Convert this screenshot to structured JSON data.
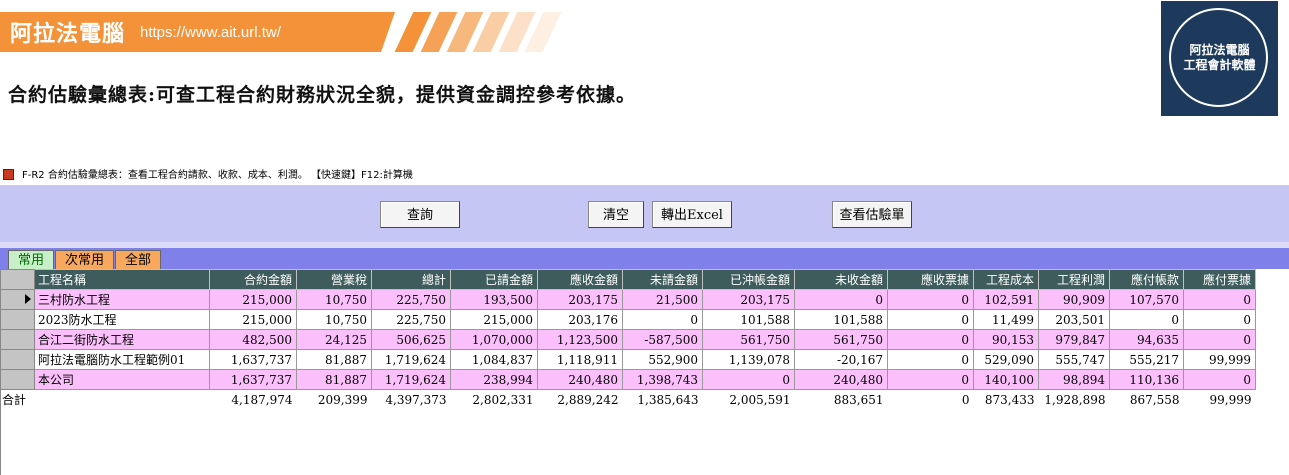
{
  "banner": {
    "title": "阿拉法電腦",
    "url": "https://www.ait.url.tw/"
  },
  "headline": "合約估驗彙總表:可查工程合約財務狀況全貌，提供資金調控參考依據。",
  "logo": {
    "line1": "阿拉法電腦",
    "line2": "工程會計軟體"
  },
  "window": {
    "title": "F-R2 合約估驗彙總表：查看工程合約請款、收款、成本、利潤。   【快速鍵】F12:計算機"
  },
  "toolbar": {
    "query_label": "查詢",
    "clear_label": "清空",
    "export_label": "轉出Excel",
    "view_label": "查看估驗單"
  },
  "tabs": {
    "common": "常用",
    "secondary": "次常用",
    "all": "全部"
  },
  "table": {
    "headers": [
      "工程名稱",
      "合約金額",
      "營業稅",
      "總計",
      "已請金額",
      "應收金額",
      "未請金額",
      "已沖帳金額",
      "未收金額",
      "應收票據",
      "工程成本",
      "工程利潤",
      "應付帳款",
      "應付票據"
    ],
    "rows": [
      [
        "三村防水工程",
        "215,000",
        "10,750",
        "225,750",
        "193,500",
        "203,175",
        "21,500",
        "203,175",
        "0",
        "0",
        "102,591",
        "90,909",
        "107,570",
        "0"
      ],
      [
        "2023防水工程",
        "215,000",
        "10,750",
        "225,750",
        "215,000",
        "203,176",
        "0",
        "101,588",
        "101,588",
        "0",
        "11,499",
        "203,501",
        "0",
        "0"
      ],
      [
        "合江二街防水工程",
        "482,500",
        "24,125",
        "506,625",
        "1,070,000",
        "1,123,500",
        "-587,500",
        "561,750",
        "561,750",
        "0",
        "90,153",
        "979,847",
        "94,635",
        "0"
      ],
      [
        "阿拉法電腦防水工程範例01",
        "1,637,737",
        "81,887",
        "1,719,624",
        "1,084,837",
        "1,118,911",
        "552,900",
        "1,139,078",
        "-20,167",
        "0",
        "529,090",
        "555,747",
        "555,217",
        "99,999"
      ],
      [
        "本公司",
        "1,637,737",
        "81,887",
        "1,719,624",
        "238,994",
        "240,480",
        "1,398,743",
        "0",
        "240,480",
        "0",
        "140,100",
        "98,894",
        "110,136",
        "0"
      ]
    ],
    "total_label": "合計",
    "totals": [
      "4,187,974",
      "209,399",
      "4,397,373",
      "2,802,331",
      "2,889,242",
      "1,385,643",
      "2,005,591",
      "883,651",
      "0",
      "873,433",
      "1,928,898",
      "867,558",
      "99,999"
    ]
  },
  "colors": {
    "banner_orange": "#f39238",
    "toolbar_lavender": "#c6c6f5",
    "tabbar_blue": "#8080ea",
    "header_teal": "#3e5c5c",
    "row_pink": "#fbc0fb",
    "logo_navy": "#1d3a5c"
  }
}
